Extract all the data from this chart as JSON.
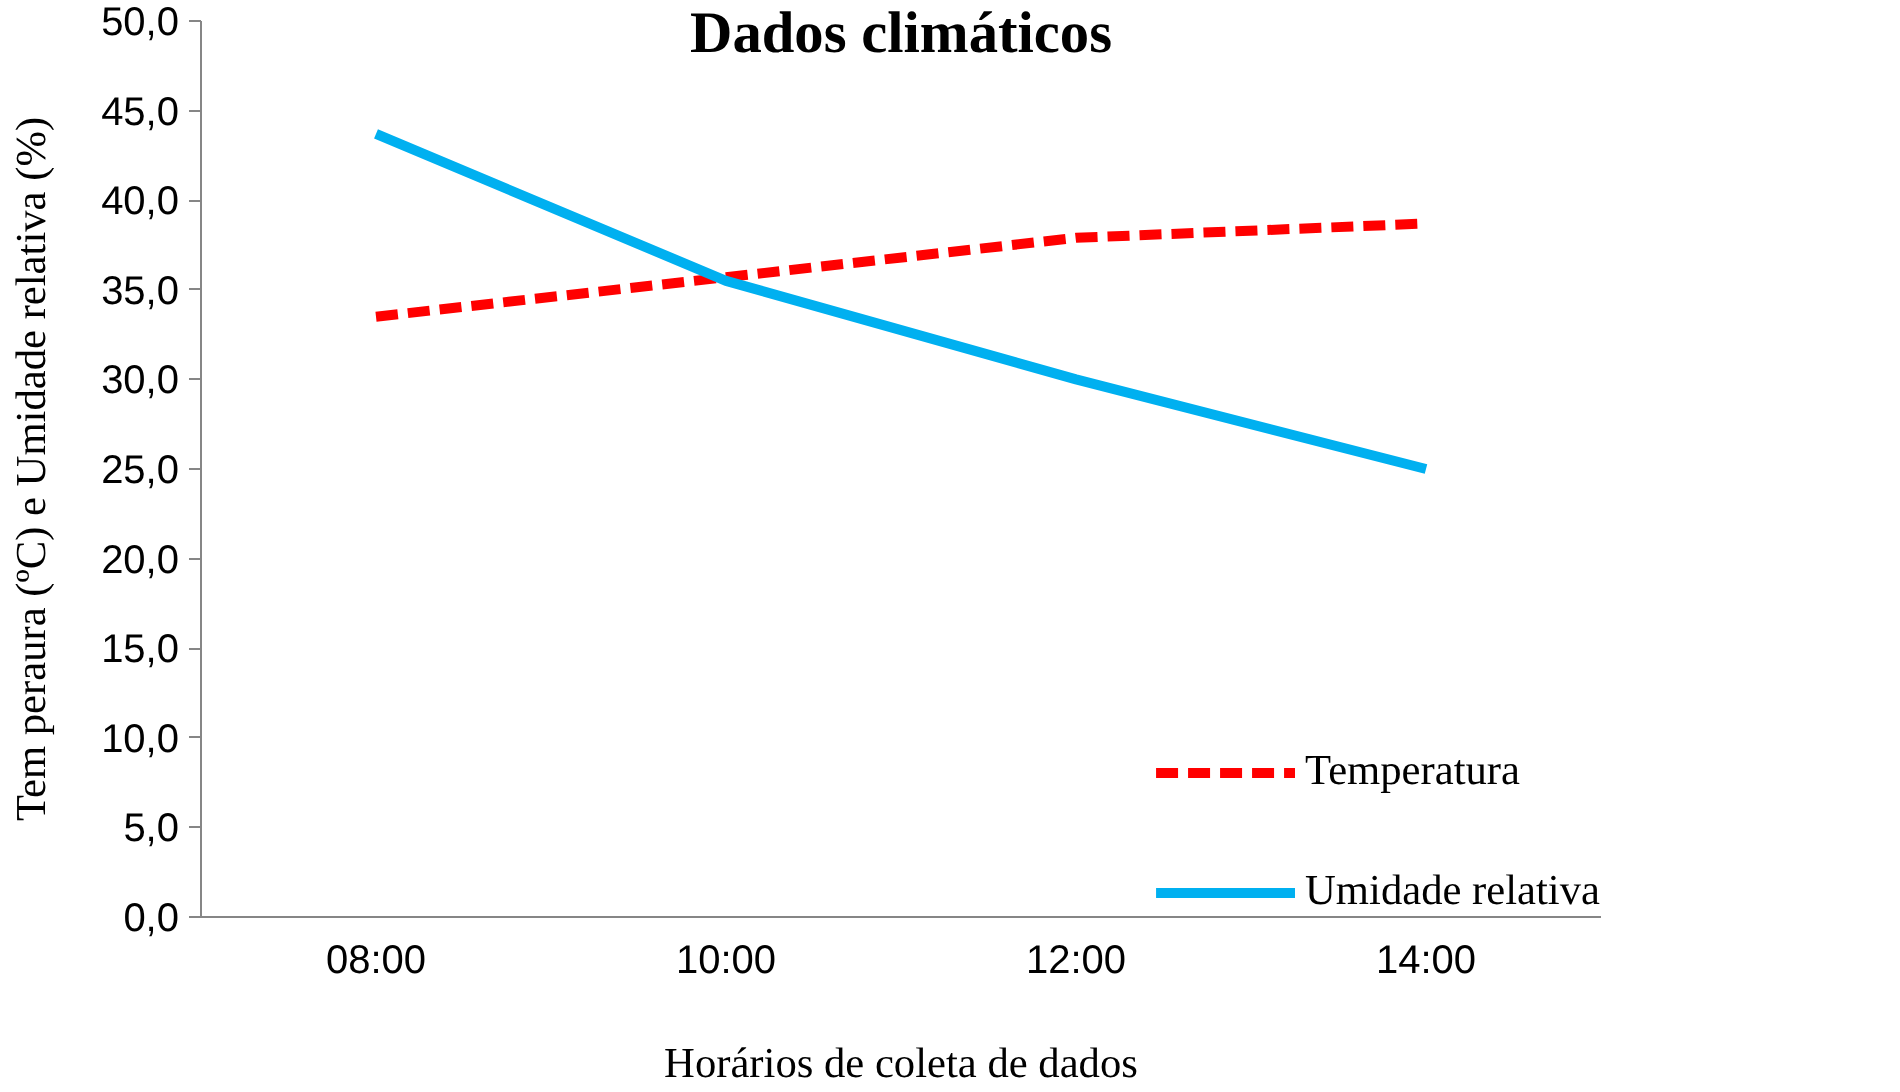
{
  "chart_data": {
    "type": "line",
    "title": "Dados climáticos",
    "xlabel": "Horários de coleta de dados",
    "ylabel": "Tem peraura (ºC) e Umidade relativa (%)",
    "categories": [
      "08:00",
      "10:00",
      "12:00",
      "14:00"
    ],
    "series": [
      {
        "name": "Temperatura",
        "color": "#ff0000",
        "line_style": "dashed",
        "values": [
          33.5,
          35.7,
          37.9,
          38.7
        ]
      },
      {
        "name": "Umidade relativa",
        "color": "#00b0f0",
        "line_style": "solid",
        "values": [
          43.7,
          35.5,
          30.0,
          25.0
        ]
      }
    ],
    "ylim": [
      0,
      50
    ],
    "yticks": [
      {
        "value": 0,
        "label": "0,0"
      },
      {
        "value": 5,
        "label": "5,0"
      },
      {
        "value": 10,
        "label": "10,0"
      },
      {
        "value": 15,
        "label": "15,0"
      },
      {
        "value": 20,
        "label": "20,0"
      },
      {
        "value": 25,
        "label": "25,0"
      },
      {
        "value": 30,
        "label": "30,0"
      },
      {
        "value": 35,
        "label": "35,0"
      },
      {
        "value": 40,
        "label": "40,0"
      },
      {
        "value": 45,
        "label": "45,0"
      },
      {
        "value": 50,
        "label": "50,0"
      }
    ],
    "grid": false,
    "legend": "bottom right",
    "marker": "none"
  }
}
